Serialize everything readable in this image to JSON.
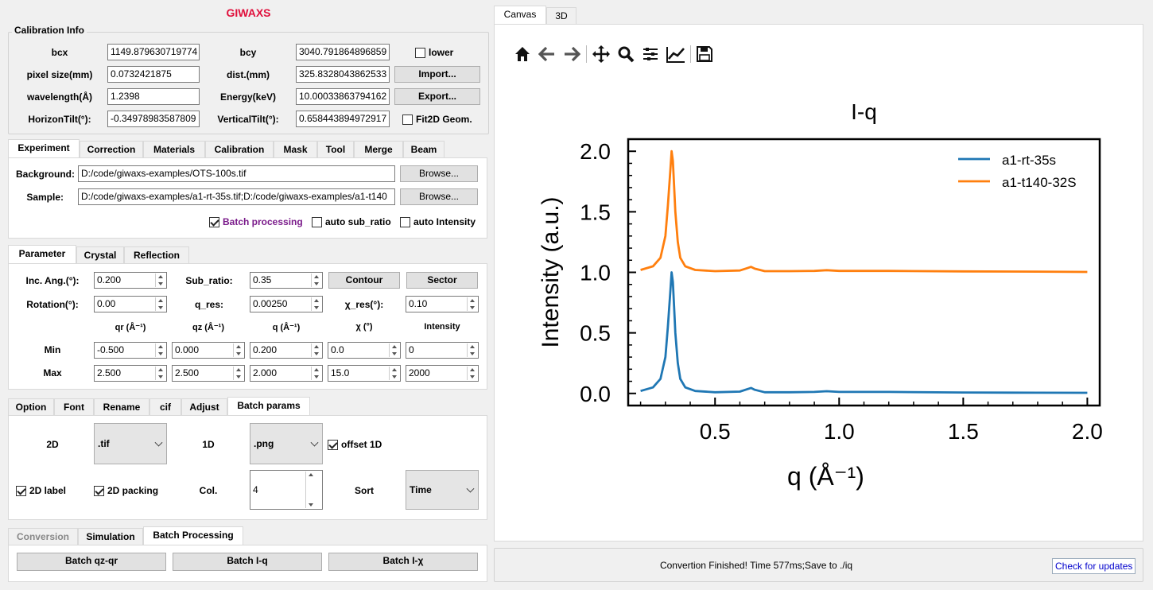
{
  "app_title": "GIWAXS",
  "calibration": {
    "group_label": "Calibration Info",
    "bcx_label": "bcx",
    "bcx_value": "1149.879630719774",
    "bcy_label": "bcy",
    "bcy_value": "3040.791864896859",
    "lower_label": "lower",
    "lower_checked": false,
    "pixel_label": "pixel size(mm)",
    "pixel_value": "0.0732421875",
    "dist_label": "dist.(mm)",
    "dist_value": "325.8328043862533",
    "import_label": "Import...",
    "wavelength_label": "wavelength(Å)",
    "wavelength_value": "1.2398",
    "energy_label": "Energy(keV)",
    "energy_value": "10.00033863794162",
    "export_label": "Export...",
    "htilt_label": "HorizonTilt(°):",
    "htilt_value": "-0.34978983587809",
    "vtilt_label": "VerticalTilt(°):",
    "vtilt_value": "0.658443894972917",
    "fit2d_label": "Fit2D Geom.",
    "fit2d_checked": false
  },
  "tabs1": [
    "Experiment",
    "Correction",
    "Materials",
    "Calibration",
    "Mask",
    "Tool",
    "Merge",
    "Beam"
  ],
  "experiment": {
    "background_label": "Background:",
    "background_value": "D:/code/giwaxs-examples/OTS-100s.tif",
    "sample_label": "Sample:",
    "sample_value": "D:/code/giwaxs-examples/a1-rt-35s.tif;D:/code/giwaxs-examples/a1-t140",
    "browse_label": "Browse...",
    "batch_label": "Batch processing",
    "auto_sub_label": "auto sub_ratio",
    "auto_int_label": "auto Intensity"
  },
  "tabs2": [
    "Parameter",
    "Crystal",
    "Reflection"
  ],
  "parameter": {
    "inc_label": "Inc. Ang.(°):",
    "inc_value": "0.200",
    "sub_label": "Sub_ratio:",
    "sub_value": "0.35",
    "contour_label": "Contour",
    "sector_label": "Sector",
    "rot_label": "Rotation(°):",
    "rot_value": "0.00",
    "qres_label": "q_res:",
    "qres_value": "0.00250",
    "xres_label": "χ_res(°):",
    "xres_value": "0.10",
    "col_headers": [
      "qr (Å⁻¹)",
      "qz (Å⁻¹)",
      "q (Å⁻¹)",
      "χ (°)",
      "Intensity"
    ],
    "min_label": "Min",
    "min_values": [
      "-0.500",
      "0.000",
      "0.200",
      "0.0",
      "0"
    ],
    "max_label": "Max",
    "max_values": [
      "2.500",
      "2.500",
      "2.000",
      "15.0",
      "2000"
    ]
  },
  "tabs3": [
    "Option",
    "Font",
    "Rename",
    "cif",
    "Adjust",
    "Batch params"
  ],
  "batch_params": {
    "label_2d": "2D",
    "combo_2d": ".tif",
    "label_1d": "1D",
    "combo_1d": ".png",
    "offset_label": "offset 1D",
    "label2d_label": "2D label",
    "packing_label": "2D packing",
    "col_label": "Col.",
    "col_value": "4",
    "sort_label": "Sort",
    "sort_value": "Time"
  },
  "tabs4": [
    "Conversion",
    "Simulation",
    "Batch Processing"
  ],
  "batch_buttons": [
    "Batch qz-qr",
    "Batch I-q",
    "Batch I-χ"
  ],
  "right_tabs": [
    "Canvas",
    "3D"
  ],
  "toolbar": [
    "home-icon",
    "back-icon",
    "forward-icon",
    "pan-icon",
    "zoom-icon",
    "subplots-icon",
    "customize-icon",
    "save-icon"
  ],
  "status": {
    "message": "Convertion Finished! Time 577ms;Save to ./iq",
    "updates_label": "Check for updates"
  },
  "chart_data": {
    "type": "line",
    "title": "I-q",
    "xlabel": "q (Å⁻¹)",
    "ylabel": "Intensity (a.u.)",
    "xlim": [
      0.15,
      2.05
    ],
    "ylim": [
      -0.1,
      2.1
    ],
    "xticks": [
      "0.5",
      "1.0",
      "1.5",
      "2.0"
    ],
    "yticks": [
      "0.0",
      "0.5",
      "1.0",
      "1.5",
      "2.0"
    ],
    "legend_position": "top-right",
    "series": [
      {
        "name": "a1-rt-35s",
        "color": "#1f77b4",
        "x": [
          0.2,
          0.25,
          0.28,
          0.3,
          0.31,
          0.32,
          0.325,
          0.33,
          0.335,
          0.34,
          0.35,
          0.36,
          0.38,
          0.42,
          0.5,
          0.6,
          0.63,
          0.645,
          0.66,
          0.7,
          0.8,
          0.9,
          0.95,
          1.0,
          1.2,
          1.5,
          1.8,
          2.0
        ],
        "y": [
          0.02,
          0.05,
          0.12,
          0.3,
          0.55,
          0.85,
          1.0,
          0.92,
          0.72,
          0.5,
          0.25,
          0.12,
          0.05,
          0.02,
          0.01,
          0.015,
          0.035,
          0.045,
          0.03,
          0.01,
          0.01,
          0.012,
          0.018,
          0.012,
          0.012,
          0.008,
          0.006,
          0.005
        ]
      },
      {
        "name": "a1-t140-32S",
        "color": "#ff7f0e",
        "x": [
          0.2,
          0.25,
          0.28,
          0.3,
          0.31,
          0.32,
          0.325,
          0.33,
          0.335,
          0.34,
          0.35,
          0.36,
          0.38,
          0.42,
          0.5,
          0.6,
          0.63,
          0.645,
          0.66,
          0.7,
          0.8,
          0.9,
          0.95,
          1.0,
          1.2,
          1.5,
          1.8,
          2.0
        ],
        "y": [
          1.02,
          1.05,
          1.12,
          1.3,
          1.55,
          1.85,
          2.0,
          1.92,
          1.72,
          1.5,
          1.25,
          1.12,
          1.05,
          1.02,
          1.01,
          1.015,
          1.035,
          1.045,
          1.03,
          1.01,
          1.01,
          1.012,
          1.018,
          1.012,
          1.012,
          1.008,
          1.006,
          1.003
        ]
      }
    ]
  }
}
